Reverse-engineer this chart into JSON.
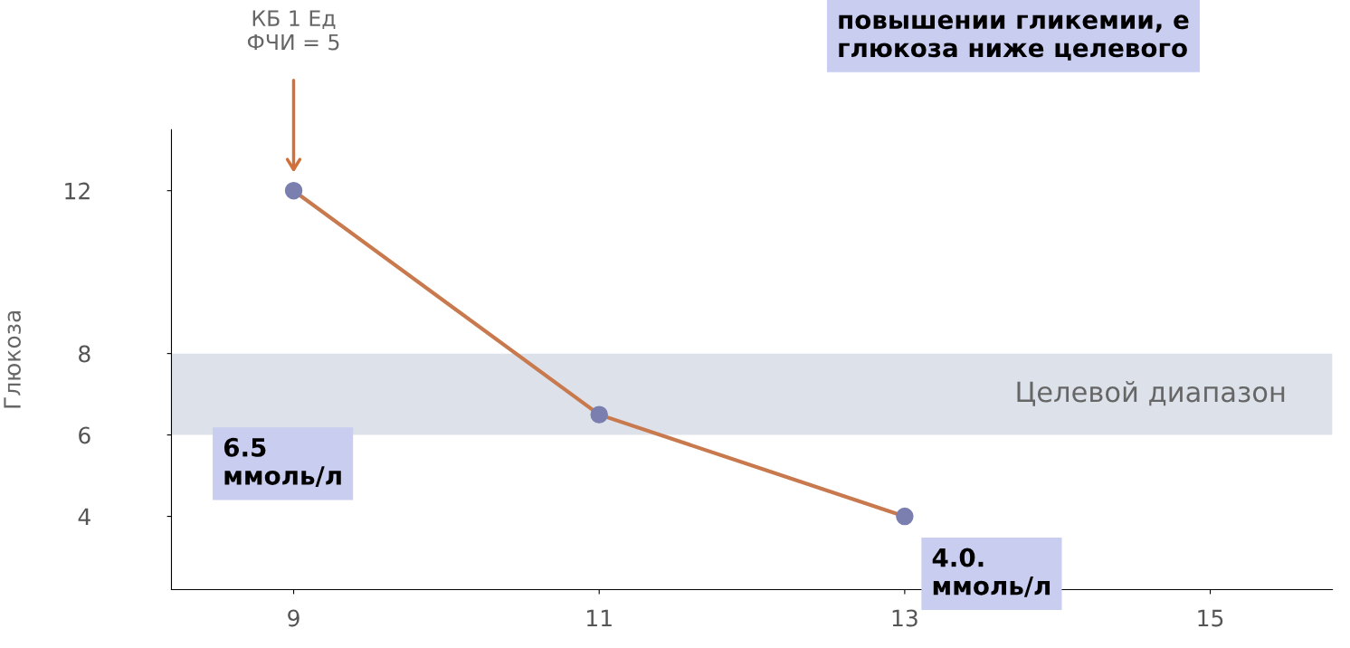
{
  "chart_data": {
    "type": "line",
    "ylabel": "Глюкоза",
    "x": [
      9,
      11,
      13
    ],
    "series": [
      {
        "color": "#c87a4e",
        "values": [
          12,
          6.5,
          4.0
        ]
      }
    ],
    "marker": "circle",
    "xlim": [
      8.2,
      15.8
    ],
    "xticks": [
      9,
      11,
      13,
      15
    ],
    "ylim": [
      2.2,
      13.5
    ],
    "yticks": [
      4,
      6,
      8,
      12
    ],
    "bands": [
      {
        "axis": "y",
        "from": 6,
        "to": 8,
        "label": "Целевой диапазон",
        "color": "#dde1ea"
      }
    ],
    "annotations": [
      "КБ 1 Ед\nФЧИ = 5",
      "6.5\nммоль/л",
      "4.0.\nммоль/л",
      "повышении гликемии, е\nглюкоза ниже целевого"
    ],
    "grid": false
  }
}
